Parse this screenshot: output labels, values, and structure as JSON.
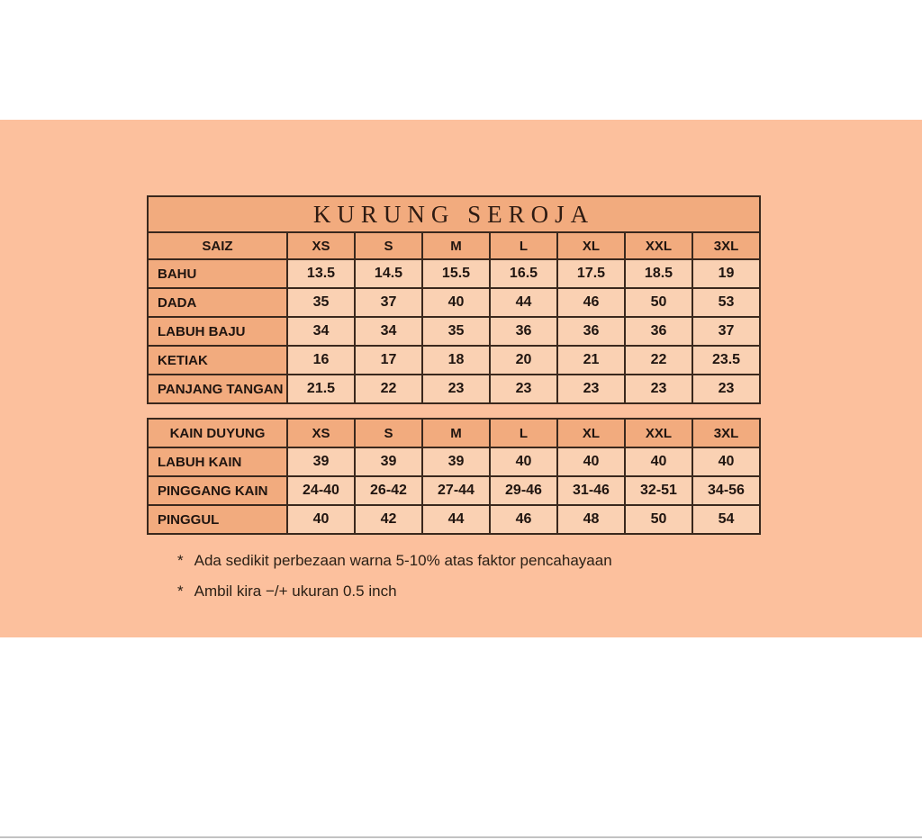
{
  "page": {
    "background_color": "#ffffff",
    "band_color": "#fcc09d"
  },
  "size_chart": {
    "title": "KURUNG SEROJA",
    "tables": [
      {
        "name": "baju",
        "title": "KURUNG SEROJA",
        "columns": [
          "SAIZ",
          "XS",
          "S",
          "M",
          "L",
          "XL",
          "XXL",
          "3XL"
        ],
        "rows": [
          {
            "label": "BAHU",
            "values": [
              "13.5",
              "14.5",
              "15.5",
              "16.5",
              "17.5",
              "18.5",
              "19"
            ]
          },
          {
            "label": "DADA",
            "values": [
              "35",
              "37",
              "40",
              "44",
              "46",
              "50",
              "53"
            ]
          },
          {
            "label": "LABUH BAJU",
            "values": [
              "34",
              "34",
              "35",
              "36",
              "36",
              "36",
              "37"
            ]
          },
          {
            "label": "KETIAK",
            "values": [
              "16",
              "17",
              "18",
              "20",
              "21",
              "22",
              "23.5"
            ]
          },
          {
            "label": "PANJANG TANGAN",
            "values": [
              "21.5",
              "22",
              "23",
              "23",
              "23",
              "23",
              "23"
            ]
          }
        ]
      },
      {
        "name": "kain",
        "title": null,
        "columns": [
          "KAIN DUYUNG",
          "XS",
          "S",
          "M",
          "L",
          "XL",
          "XXL",
          "3XL"
        ],
        "rows": [
          {
            "label": "LABUH KAIN",
            "values": [
              "39",
              "39",
              "39",
              "40",
              "40",
              "40",
              "40"
            ]
          },
          {
            "label": "PINGGANG KAIN",
            "values": [
              "24-40",
              "26-42",
              "27-44",
              "29-46",
              "31-46",
              "32-51",
              "34-56"
            ]
          },
          {
            "label": "PINGGUL",
            "values": [
              "40",
              "42",
              "44",
              "46",
              "48",
              "50",
              "54"
            ]
          }
        ]
      }
    ],
    "notes": [
      {
        "bullet": "*",
        "text": "Ada sedikit perbezaan warna 5-10% atas faktor pencahayaan"
      },
      {
        "bullet": "*",
        "text": "Ambil kira −/+ ukuran 0.5 inch"
      }
    ],
    "colors": {
      "header_cell": "#f2ab7e",
      "data_cell": "#fad1b3",
      "border": "#3a281d",
      "text": "#201510"
    }
  }
}
